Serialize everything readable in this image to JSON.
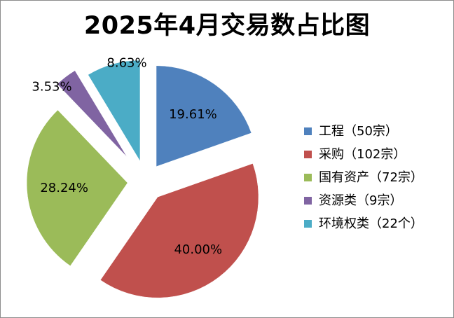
{
  "chart_data": {
    "type": "pie",
    "title": "2025年4月交易数占比图",
    "slices": [
      {
        "label": "工程（50宗）",
        "percent_label": "19.61%",
        "value": 19.61,
        "color": "#4f81bd"
      },
      {
        "label": "采购（102宗）",
        "percent_label": "40.00%",
        "value": 40.0,
        "color": "#c0504d"
      },
      {
        "label": "国有资产（72宗）",
        "percent_label": "28.24%",
        "value": 28.24,
        "color": "#9bbb59"
      },
      {
        "label": "资源类（9宗）",
        "percent_label": "3.53%",
        "value": 3.53,
        "color": "#8064a2"
      },
      {
        "label": "环境权类（22个）",
        "percent_label": "8.63%",
        "value": 8.63,
        "color": "#4bacc6"
      }
    ],
    "legend_position": "right",
    "exploded": true
  }
}
